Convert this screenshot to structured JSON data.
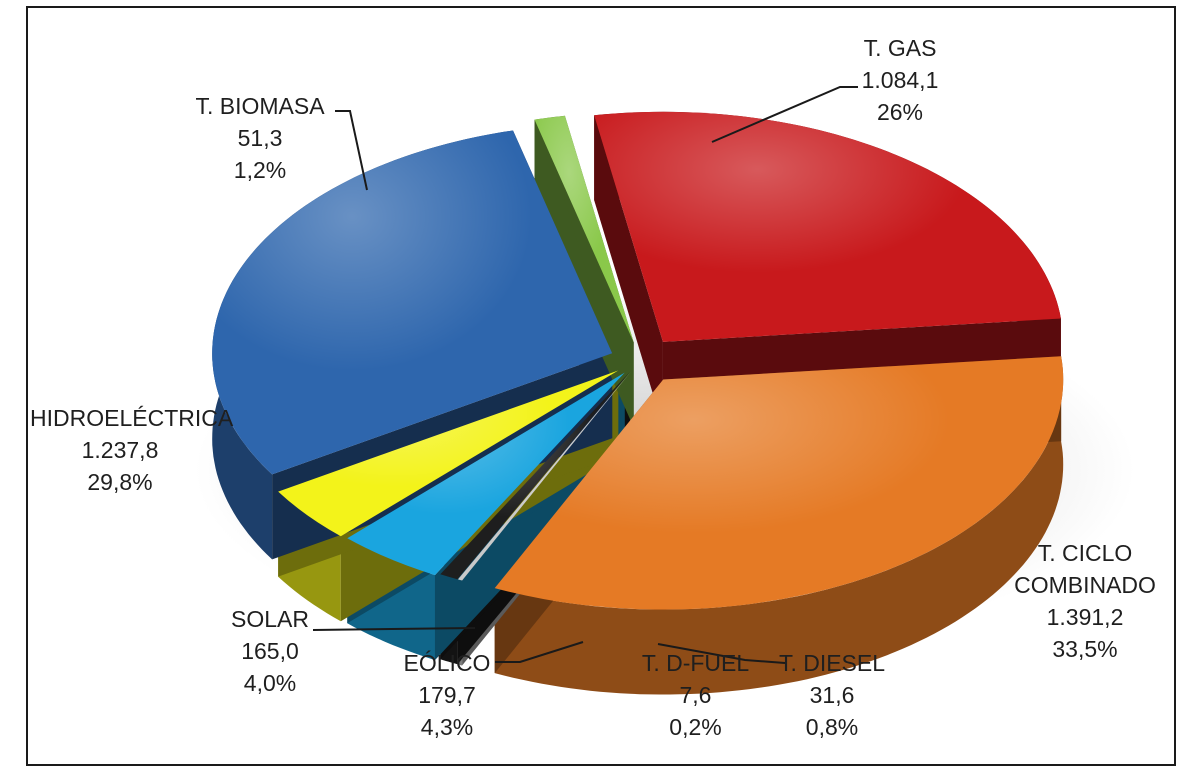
{
  "chart_data": {
    "type": "pie",
    "title": "",
    "legend": "none",
    "slices": [
      {
        "name": "T. GAS",
        "value": 1084.1,
        "value_label": "1.084,1",
        "percent_label": "26%",
        "color": "#c8191c"
      },
      {
        "name": "T. CICLO COMBINADO",
        "value": 1391.2,
        "value_label": "1.391,2",
        "percent_label": "33,5%",
        "color": "#e57a25"
      },
      {
        "name": "T. D-FUEL",
        "value": 7.6,
        "value_label": "7,6",
        "percent_label": "0,2%",
        "color": "#c9c9c9"
      },
      {
        "name": "T. DIESEL",
        "value": 31.6,
        "value_label": "31,6",
        "percent_label": "0,8%",
        "color": "#1e1e1e"
      },
      {
        "name": "EÓLICO",
        "value": 179.7,
        "value_label": "179,7",
        "percent_label": "4,3%",
        "color": "#1aa5df"
      },
      {
        "name": "SOLAR",
        "value": 165.0,
        "value_label": "165,0",
        "percent_label": "4,0%",
        "color": "#f3f31a"
      },
      {
        "name": "HIDROELÉCTRICA",
        "value": 1237.8,
        "value_label": "1.237,8",
        "percent_label": "29,8%",
        "color": "#2e66ad"
      },
      {
        "name": "T. BIOMASA",
        "value": 51.3,
        "value_label": "51,3",
        "percent_label": "1,2%",
        "color": "#8ac84a"
      }
    ]
  }
}
